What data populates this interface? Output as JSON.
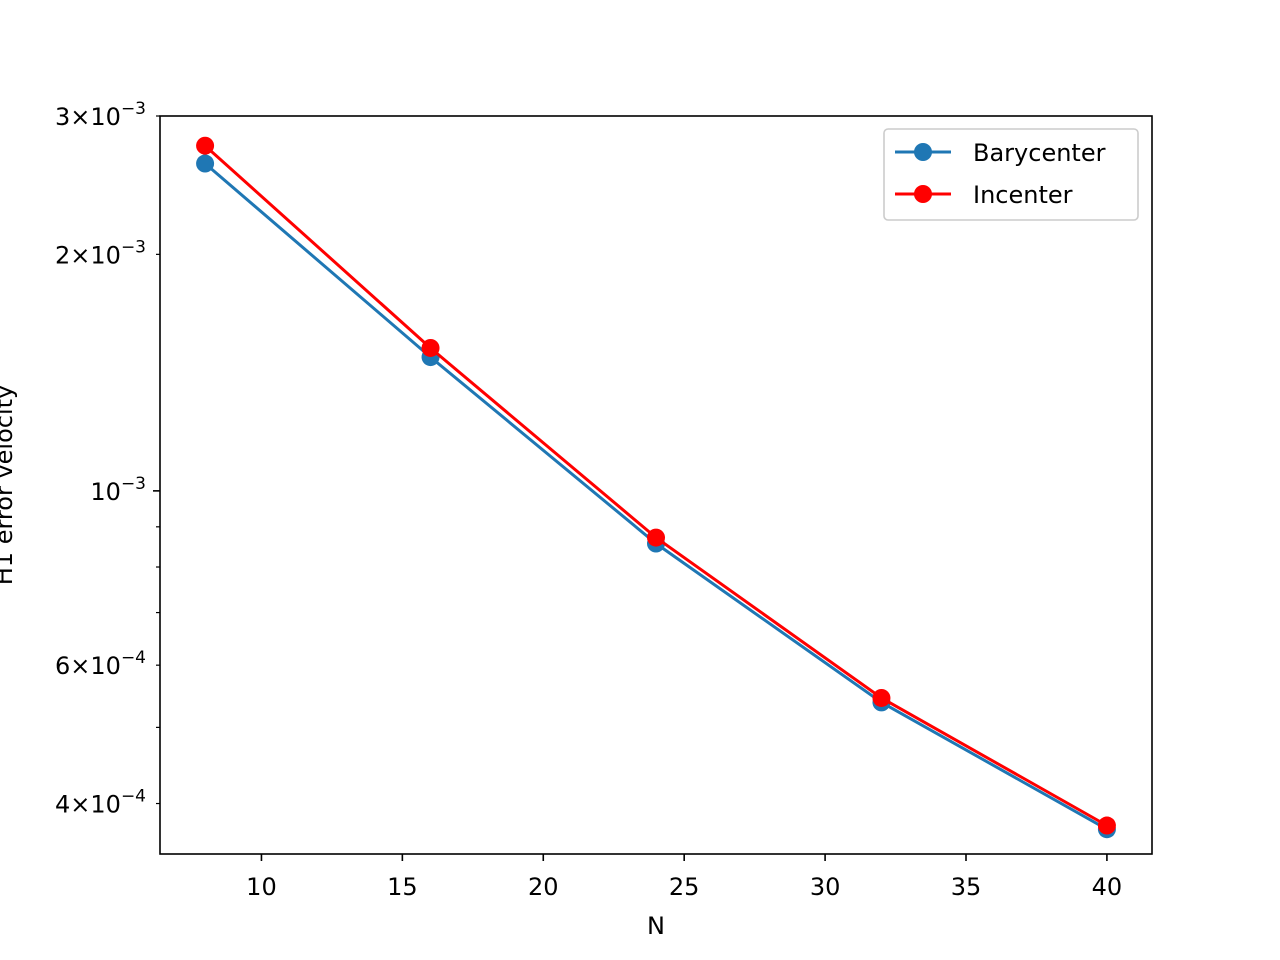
{
  "chart_data": {
    "type": "line",
    "xlabel": "N",
    "ylabel": "H1 error velocity",
    "yscale": "log",
    "xlim": [
      6.4,
      41.6
    ],
    "ylim": [
      0.000345,
      0.003
    ],
    "grid": false,
    "legend_position": "top-right",
    "x_ticks": [
      {
        "value": 10,
        "label": "10"
      },
      {
        "value": 15,
        "label": "15"
      },
      {
        "value": 20,
        "label": "20"
      },
      {
        "value": 25,
        "label": "25"
      },
      {
        "value": 30,
        "label": "30"
      },
      {
        "value": 35,
        "label": "35"
      },
      {
        "value": 40,
        "label": "40"
      }
    ],
    "y_major_ticks": [
      {
        "value": 0.001,
        "mantissa": "",
        "exponent": "−3"
      }
    ],
    "y_minor_ticks": [
      {
        "value": 0.0004,
        "mantissa": "4",
        "exponent": "−4",
        "labeled": true
      },
      {
        "value": 0.0005,
        "labeled": false
      },
      {
        "value": 0.0006,
        "mantissa": "6",
        "exponent": "−4",
        "labeled": true
      },
      {
        "value": 0.0007,
        "labeled": false
      },
      {
        "value": 0.0008,
        "labeled": false
      },
      {
        "value": 0.0009,
        "labeled": false
      },
      {
        "value": 0.002,
        "mantissa": "2",
        "exponent": "−3",
        "labeled": true
      },
      {
        "value": 0.003,
        "mantissa": "3",
        "exponent": "−3",
        "labeled": true
      }
    ],
    "x": [
      8,
      16,
      24,
      32,
      40
    ],
    "series": [
      {
        "name": "Barycenter",
        "color": "#1f77b4",
        "values": [
          0.00261,
          0.00148,
          0.000857,
          0.000538,
          0.000371
        ]
      },
      {
        "name": "Incenter",
        "color": "#ff0000",
        "values": [
          0.00275,
          0.00152,
          0.000872,
          0.000545,
          0.000375
        ]
      }
    ]
  }
}
